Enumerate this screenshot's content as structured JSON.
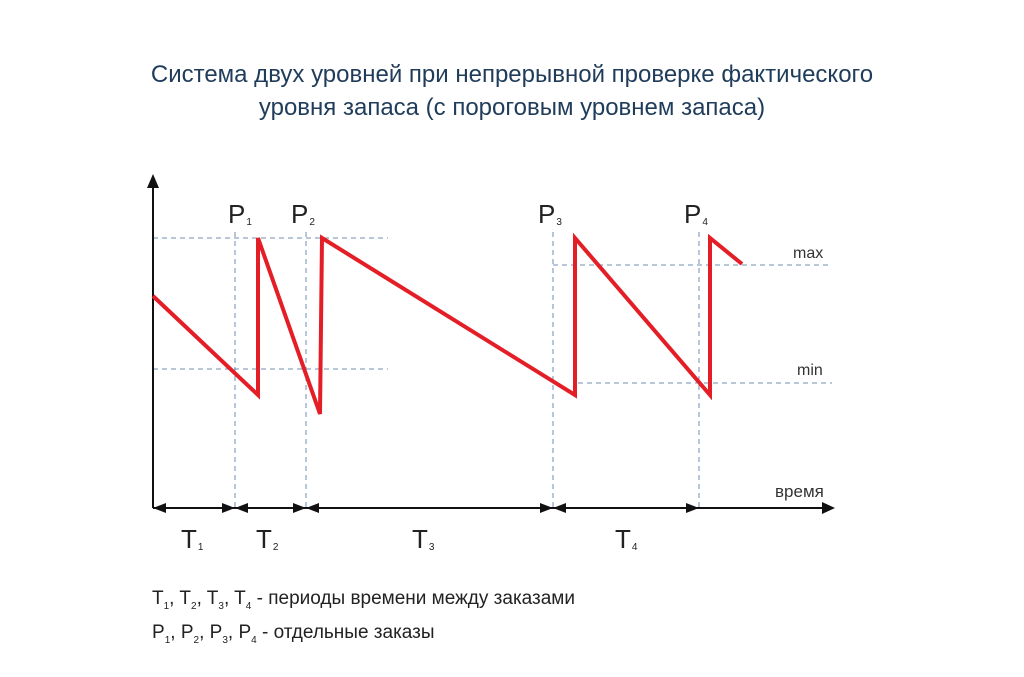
{
  "title": {
    "line1": "Система двух уровней при непрерывной проверке фактического",
    "line2": "уровня запаса (с пороговым уровнем запаса)"
  },
  "diagram": {
    "level_labels": {
      "max": "max",
      "min": "min"
    },
    "x_axis_label": "время",
    "orders": [
      {
        "main": "P",
        "sub": "1"
      },
      {
        "main": "P",
        "sub": "2"
      },
      {
        "main": "P",
        "sub": "3"
      },
      {
        "main": "P",
        "sub": "4"
      }
    ],
    "periods": [
      {
        "main": "T",
        "sub": "1"
      },
      {
        "main": "T",
        "sub": "2"
      },
      {
        "main": "T",
        "sub": "3"
      },
      {
        "main": "T",
        "sub": "4"
      }
    ],
    "colors": {
      "stock_line": "#e41e26",
      "guides": "#6f8fb0",
      "axis": "#111111",
      "title": "#1f3c5a"
    }
  },
  "legend": {
    "periods_text": "- периоды времени между заказами",
    "orders_text": "- отдельные заказы"
  }
}
